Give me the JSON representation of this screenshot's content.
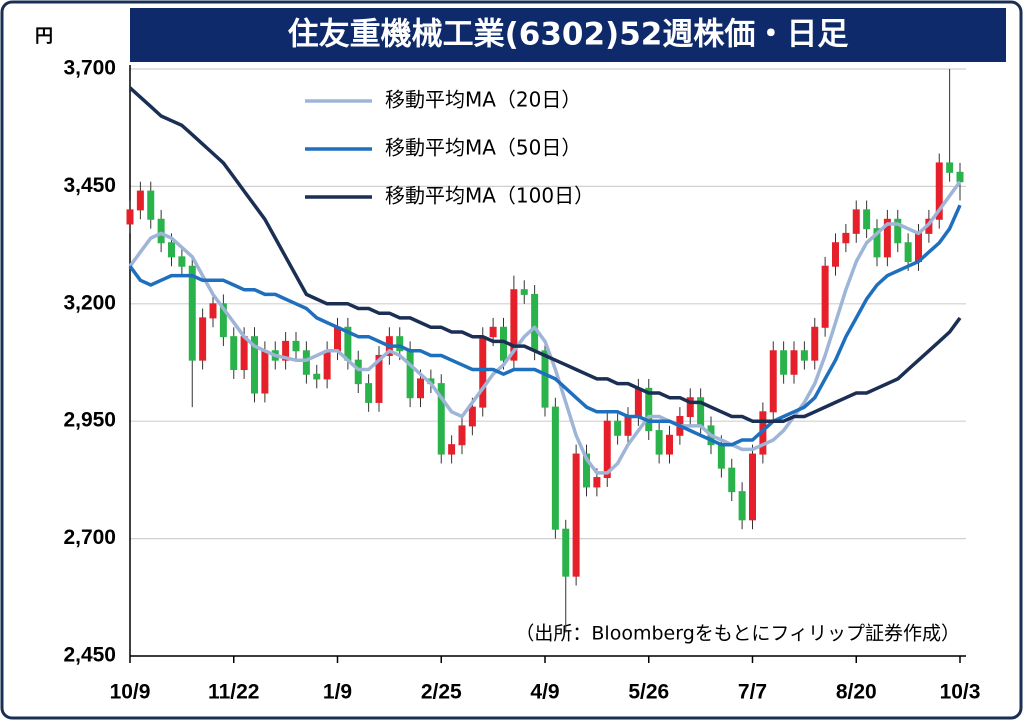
{
  "chart_data": {
    "type": "candlestick",
    "title": "住友重機械工業(6302)52週株価・日足",
    "y_unit": "円",
    "source": "（出所：Bloombergをもとにフィリップ証券作成）",
    "categories": [
      "10/9",
      null,
      null,
      null,
      null,
      null,
      null,
      null,
      null,
      null,
      "11/22",
      null,
      null,
      null,
      null,
      null,
      null,
      null,
      null,
      null,
      "1/9",
      null,
      null,
      null,
      null,
      null,
      null,
      null,
      null,
      null,
      "2/25",
      null,
      null,
      null,
      null,
      null,
      null,
      null,
      null,
      null,
      "4/9",
      null,
      null,
      null,
      null,
      null,
      null,
      null,
      null,
      null,
      "5/26",
      null,
      null,
      null,
      null,
      null,
      null,
      null,
      null,
      null,
      "7/7",
      null,
      null,
      null,
      null,
      null,
      null,
      null,
      null,
      null,
      "8/20",
      null,
      null,
      null,
      null,
      null,
      null,
      null,
      null,
      null,
      "10/3"
    ],
    "open": [
      3370,
      3400,
      3440,
      3380,
      3330,
      3300,
      3280,
      3080,
      3170,
      3200,
      3130,
      3060,
      3130,
      3010,
      3100,
      3080,
      3120,
      3100,
      3050,
      3040,
      3100,
      3150,
      3080,
      3030,
      2990,
      3090,
      3130,
      3100,
      3000,
      3040,
      3030,
      2880,
      2900,
      2940,
      2980,
      3130,
      3150,
      3080,
      3230,
      3220,
      3100,
      2980,
      2720,
      2620,
      2880,
      2810,
      2830,
      2950,
      2920,
      2960,
      3020,
      2930,
      2880,
      2920,
      2960,
      3000,
      2940,
      2900,
      2850,
      2800,
      2740,
      2880,
      2970,
      3100,
      3050,
      3100,
      3080,
      3150,
      3280,
      3330,
      3350,
      3400,
      3360,
      3300,
      3380,
      3330,
      3290,
      3350,
      3380,
      3500,
      3480
    ],
    "high": [
      3420,
      3460,
      3460,
      3400,
      3350,
      3320,
      3300,
      3190,
      3220,
      3220,
      3150,
      3150,
      3150,
      3120,
      3120,
      3140,
      3140,
      3120,
      3070,
      3120,
      3170,
      3170,
      3100,
      3050,
      3110,
      3150,
      3150,
      3120,
      3060,
      3060,
      3050,
      2920,
      2960,
      3000,
      3150,
      3170,
      3170,
      3260,
      3250,
      3240,
      3120,
      3000,
      2740,
      2900,
      2900,
      2850,
      2970,
      2970,
      2980,
      3040,
      3040,
      2950,
      2940,
      2980,
      3020,
      3020,
      2960,
      2920,
      2870,
      2820,
      2900,
      2990,
      3120,
      3120,
      3120,
      3120,
      3170,
      3300,
      3350,
      3370,
      3420,
      3420,
      3380,
      3400,
      3400,
      3350,
      3370,
      3400,
      3520,
      3700,
      3500
    ],
    "low": [
      3350,
      3380,
      3360,
      3310,
      3280,
      3260,
      2980,
      3060,
      3150,
      3110,
      3040,
      3040,
      2990,
      2990,
      3060,
      3060,
      3080,
      3030,
      3020,
      3020,
      3080,
      3060,
      3010,
      2970,
      2970,
      3070,
      3080,
      2980,
      2980,
      3010,
      2860,
      2860,
      2880,
      2920,
      2960,
      3110,
      3060,
      3060,
      3200,
      3080,
      2960,
      2700,
      2500,
      2600,
      2790,
      2790,
      2810,
      2900,
      2900,
      2940,
      2910,
      2860,
      2860,
      2900,
      2940,
      2920,
      2880,
      2830,
      2780,
      2720,
      2720,
      2860,
      2950,
      3030,
      3030,
      3060,
      3060,
      3130,
      3260,
      3310,
      3330,
      3340,
      3280,
      3280,
      3310,
      3270,
      3270,
      3330,
      3360,
      3460,
      3420
    ],
    "close": [
      3400,
      3440,
      3380,
      3330,
      3300,
      3280,
      3080,
      3170,
      3200,
      3130,
      3060,
      3130,
      3010,
      3100,
      3080,
      3120,
      3100,
      3050,
      3040,
      3100,
      3150,
      3080,
      3030,
      2990,
      3090,
      3130,
      3100,
      3000,
      3040,
      3030,
      2880,
      2900,
      2940,
      2980,
      3130,
      3150,
      3080,
      3230,
      3220,
      3100,
      2980,
      2720,
      2620,
      2880,
      2810,
      2830,
      2950,
      2920,
      2960,
      3020,
      2930,
      2880,
      2920,
      2960,
      3000,
      2940,
      2900,
      2850,
      2800,
      2740,
      2880,
      2970,
      3100,
      3050,
      3100,
      3080,
      3150,
      3280,
      3330,
      3350,
      3400,
      3360,
      3300,
      3380,
      3330,
      3290,
      3350,
      3380,
      3500,
      3480,
      3460
    ],
    "up_color": "#e5202a",
    "down_color": "#2ab24b",
    "series": [
      {
        "name": "移動平均MA（20日）",
        "color": "#9fb5d8",
        "values": [
          3280,
          3310,
          3340,
          3350,
          3340,
          3320,
          3300,
          3260,
          3220,
          3190,
          3160,
          3130,
          3110,
          3100,
          3090,
          3085,
          3080,
          3080,
          3090,
          3100,
          3100,
          3080,
          3060,
          3060,
          3080,
          3100,
          3090,
          3070,
          3050,
          3030,
          3000,
          2970,
          2960,
          2990,
          3020,
          3050,
          3070,
          3100,
          3130,
          3150,
          3120,
          3060,
          2990,
          2920,
          2870,
          2840,
          2840,
          2860,
          2900,
          2930,
          2960,
          2960,
          2950,
          2940,
          2940,
          2940,
          2920,
          2910,
          2900,
          2890,
          2890,
          2900,
          2910,
          2930,
          2960,
          2990,
          3030,
          3090,
          3160,
          3230,
          3290,
          3330,
          3350,
          3370,
          3370,
          3360,
          3350,
          3370,
          3400,
          3430,
          3460
        ]
      },
      {
        "name": "移動平均MA（50日）",
        "color": "#1f6fbf",
        "values": [
          3280,
          3250,
          3240,
          3250,
          3260,
          3260,
          3260,
          3250,
          3250,
          3250,
          3240,
          3230,
          3230,
          3220,
          3220,
          3210,
          3200,
          3190,
          3170,
          3160,
          3150,
          3140,
          3130,
          3130,
          3120,
          3110,
          3110,
          3100,
          3100,
          3090,
          3090,
          3080,
          3070,
          3060,
          3060,
          3060,
          3050,
          3060,
          3060,
          3060,
          3050,
          3040,
          3020,
          3000,
          2980,
          2970,
          2970,
          2970,
          2960,
          2960,
          2950,
          2950,
          2950,
          2940,
          2930,
          2920,
          2910,
          2900,
          2900,
          2910,
          2910,
          2930,
          2950,
          2960,
          2970,
          2980,
          3000,
          3040,
          3080,
          3130,
          3170,
          3210,
          3240,
          3260,
          3270,
          3280,
          3290,
          3310,
          3330,
          3360,
          3410
        ]
      },
      {
        "name": "移動平均MA（100日）",
        "color": "#1b2f55",
        "values": [
          3660,
          3640,
          3620,
          3600,
          3590,
          3580,
          3560,
          3540,
          3520,
          3500,
          3470,
          3440,
          3410,
          3380,
          3340,
          3300,
          3260,
          3220,
          3210,
          3200,
          3200,
          3200,
          3190,
          3190,
          3180,
          3180,
          3170,
          3170,
          3160,
          3150,
          3150,
          3140,
          3140,
          3130,
          3130,
          3120,
          3120,
          3110,
          3110,
          3100,
          3090,
          3080,
          3070,
          3060,
          3050,
          3040,
          3040,
          3030,
          3030,
          3020,
          3010,
          3010,
          3000,
          3000,
          2990,
          2990,
          2980,
          2970,
          2960,
          2960,
          2950,
          2950,
          2950,
          2950,
          2960,
          2960,
          2970,
          2980,
          2990,
          3000,
          3010,
          3010,
          3020,
          3030,
          3040,
          3060,
          3080,
          3100,
          3120,
          3140,
          3170
        ]
      }
    ],
    "ylim": [
      2450,
      3700
    ],
    "yticks": [
      {
        "value": 2450,
        "label": "2,450"
      },
      {
        "value": 2700,
        "label": "2,700"
      },
      {
        "value": 2950,
        "label": "2,950"
      },
      {
        "value": 3200,
        "label": "3,200"
      },
      {
        "value": 3450,
        "label": "3,450"
      },
      {
        "value": 3700,
        "label": "3,700"
      }
    ],
    "grid": true,
    "legend": "upper left"
  }
}
